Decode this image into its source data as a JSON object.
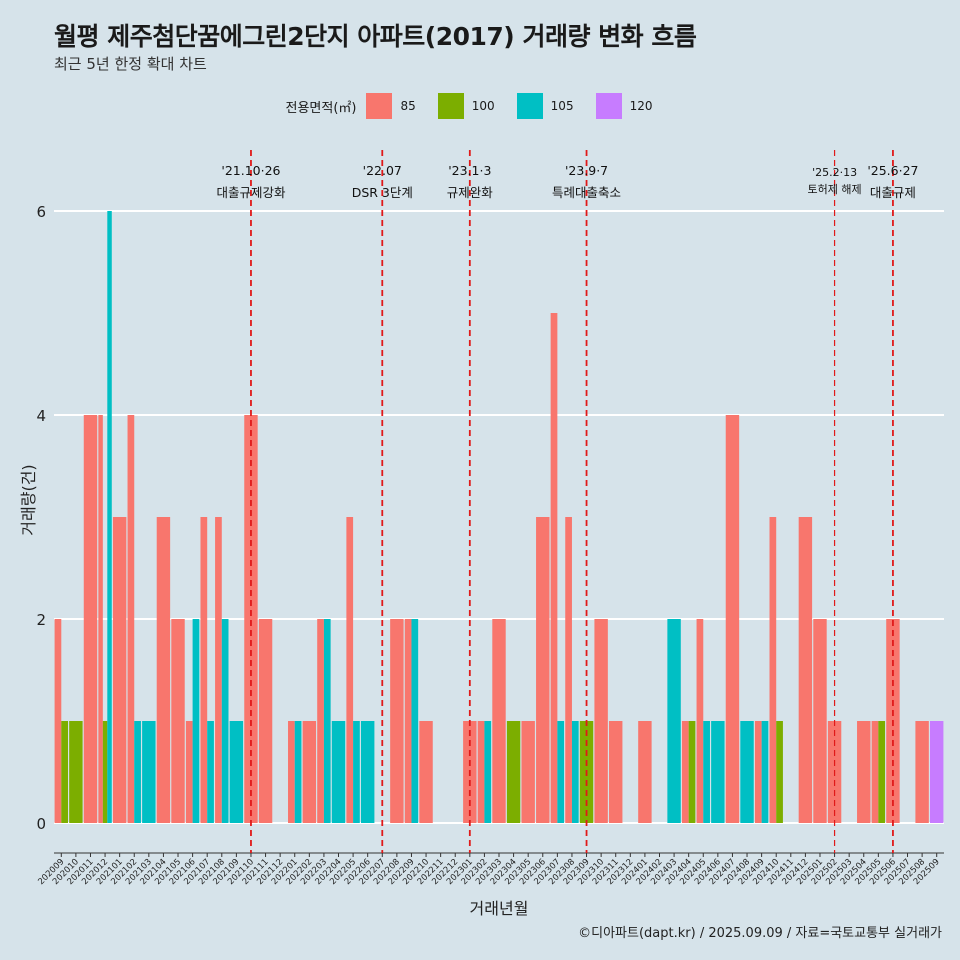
{
  "title": "월평 제주첨단꿈에그린2단지 아파트(2017) 거래량 변화 흐름",
  "subtitle": "최근 5년 한정 확대 차트",
  "source": "©디아파트(dapt.kr) / 2025.09.09 / 자료=국토교통부 실거래가",
  "legend": {
    "title": "전용면적(㎡)",
    "items": [
      {
        "label": "85",
        "color": "#f8766d"
      },
      {
        "label": "100",
        "color": "#7cae00"
      },
      {
        "label": "105",
        "color": "#00bfc4"
      },
      {
        "label": "120",
        "color": "#c77cff"
      }
    ]
  },
  "chart_data": {
    "type": "bar",
    "xlabel": "거래년월",
    "ylabel": "거래량(건)",
    "ylim": [
      -0.3,
      6.6
    ],
    "yticks": [
      0,
      2,
      4,
      6
    ],
    "categories": [
      "202009",
      "202010",
      "202011",
      "202012",
      "202101",
      "202102",
      "202103",
      "202104",
      "202105",
      "202106",
      "202107",
      "202108",
      "202109",
      "202110",
      "202111",
      "202112",
      "202201",
      "202202",
      "202203",
      "202204",
      "202205",
      "202206",
      "202207",
      "202208",
      "202209",
      "202210",
      "202211",
      "202212",
      "202301",
      "202302",
      "202303",
      "202304",
      "202305",
      "202306",
      "202307",
      "202308",
      "202309",
      "202310",
      "202311",
      "202312",
      "202401",
      "202402",
      "202403",
      "202404",
      "202405",
      "202406",
      "202407",
      "202408",
      "202409",
      "202410",
      "202411",
      "202412",
      "202501",
      "202502",
      "202503",
      "202504",
      "202505",
      "202506",
      "202507",
      "202508",
      "202509"
    ],
    "series": [
      {
        "name": "85",
        "values": [
          2,
          0,
          4,
          4,
          3,
          4,
          0,
          3,
          2,
          1,
          3,
          3,
          0,
          4,
          2,
          0,
          1,
          1,
          2,
          0,
          3,
          0,
          0,
          2,
          2,
          1,
          0,
          0,
          1,
          1,
          2,
          0,
          1,
          3,
          5,
          3,
          0,
          2,
          1,
          0,
          1,
          0,
          0,
          1,
          2,
          0,
          4,
          0,
          1,
          3,
          0,
          3,
          2,
          1,
          0,
          1,
          1,
          2,
          0,
          1,
          0
        ]
      },
      {
        "name": "100",
        "values": [
          1,
          1,
          0,
          1,
          0,
          0,
          0,
          0,
          0,
          0,
          0,
          0,
          0,
          0,
          0,
          0,
          0,
          0,
          0,
          0,
          0,
          0,
          0,
          0,
          0,
          0,
          0,
          0,
          0,
          0,
          0,
          1,
          0,
          0,
          0,
          0,
          1,
          0,
          0,
          0,
          0,
          0,
          0,
          1,
          0,
          0,
          0,
          0,
          0,
          1,
          0,
          0,
          0,
          0,
          0,
          0,
          1,
          0,
          0,
          0,
          0
        ]
      },
      {
        "name": "105",
        "values": [
          0,
          0,
          0,
          6,
          0,
          1,
          1,
          0,
          0,
          2,
          1,
          2,
          1,
          0,
          0,
          0,
          1,
          0,
          2,
          1,
          1,
          1,
          0,
          0,
          2,
          0,
          0,
          0,
          0,
          1,
          0,
          0,
          0,
          0,
          1,
          1,
          0,
          0,
          0,
          0,
          0,
          0,
          2,
          0,
          1,
          1,
          0,
          1,
          1,
          0,
          0,
          0,
          0,
          0,
          0,
          0,
          0,
          0,
          0,
          0,
          0
        ]
      },
      {
        "name": "120",
        "values": [
          0,
          0,
          0,
          0,
          0,
          0,
          0,
          0,
          0,
          0,
          0,
          0,
          0,
          0,
          0,
          0,
          0,
          0,
          0,
          0,
          0,
          0,
          0,
          0,
          0,
          0,
          0,
          0,
          0,
          0,
          0,
          0,
          0,
          0,
          0,
          0,
          0,
          0,
          0,
          0,
          0,
          0,
          0,
          0,
          0,
          0,
          0,
          0,
          0,
          0,
          0,
          0,
          0,
          0,
          0,
          0,
          0,
          0,
          0,
          0,
          1
        ]
      }
    ],
    "events": [
      {
        "month": "202110",
        "line1": "'21.10·26",
        "line2": "대출규제강화",
        "size": "normal"
      },
      {
        "month": "202207",
        "line1": "'22.07",
        "line2": "DSR 3단계",
        "size": "normal"
      },
      {
        "month": "202301",
        "line1": "'23.1·3",
        "line2": "규제완화",
        "size": "normal"
      },
      {
        "month": "202309",
        "line1": "'23.9·7",
        "line2": "특례대출축소",
        "size": "normal"
      },
      {
        "month": "202502",
        "line1": "'25.2·13",
        "line2": "토허제 해제",
        "size": "small"
      },
      {
        "month": "202506",
        "line1": "'25.6·27",
        "line2": "대출규제",
        "size": "normal"
      }
    ]
  }
}
